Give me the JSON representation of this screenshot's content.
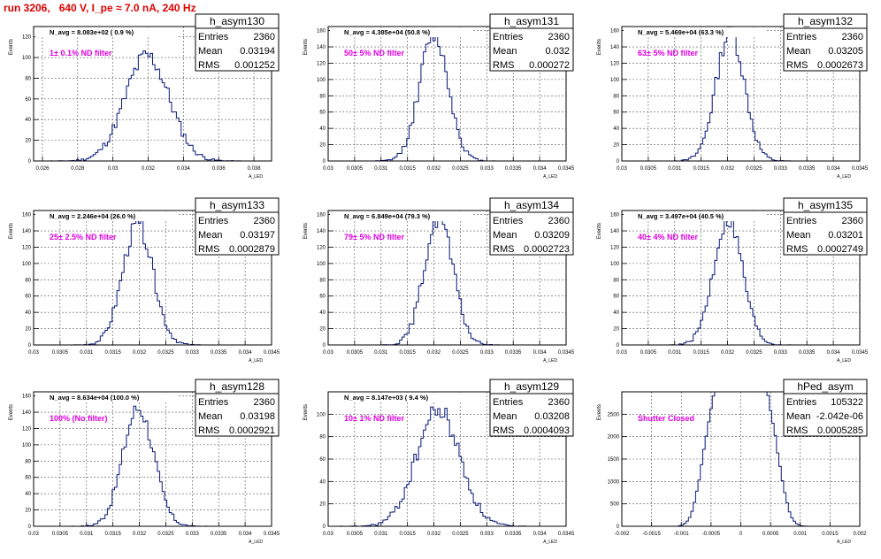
{
  "header": {
    "title": "run 3206,   640 V, I_pe ≈ 7.0 nA, 240 Hz"
  },
  "colors": {
    "histogram": "#0a1a7a",
    "title": "#e00000",
    "filter_label": "#e000e0",
    "grid": "#555555"
  },
  "chart_data": [
    {
      "type": "bar",
      "name": "h_asym130",
      "ylabel": "Events",
      "xlabel": "A_LED",
      "xlim": [
        0.0255,
        0.039
      ],
      "ylim": [
        0,
        130
      ],
      "xticks": [
        "0.026",
        "0.028",
        "0.03",
        "0.032",
        "0.034",
        "0.036",
        "0.038"
      ],
      "yticks": [
        "0",
        "20",
        "40",
        "60",
        "80",
        "100",
        "120"
      ],
      "stats": {
        "label": "h_asym130",
        "entries": "2360",
        "mean": "0.03194",
        "rms": "0.001252"
      },
      "navg": "N_avg = 8.083e+02 ( 0.9 %)",
      "filter": "1± 0.1% ND filter",
      "hist": {
        "mean": 0.03194,
        "sigma": 0.001252,
        "n": 2360,
        "bins": 100,
        "seed": 11
      }
    },
    {
      "type": "bar",
      "name": "h_asym131",
      "ylabel": "Events",
      "xlabel": "A_LED",
      "xlim": [
        0.03,
        0.0345
      ],
      "ylim": [
        0,
        165
      ],
      "xticks": [
        "0.03",
        "0.0305",
        "0.031",
        "0.0315",
        "0.032",
        "0.0325",
        "0.033",
        "0.0335",
        "0.034",
        "0.0345"
      ],
      "yticks": [
        "0",
        "20",
        "40",
        "60",
        "80",
        "100",
        "120",
        "140",
        "160"
      ],
      "stats": {
        "label": "h_asym131",
        "entries": "2360",
        "mean": "0.032",
        "rms": "0.000272"
      },
      "navg": "N_avg = 4.385e+04 (50.8 %)",
      "filter": "50± 5% ND filter",
      "hist": {
        "mean": 0.032,
        "sigma": 0.000272,
        "n": 2360,
        "bins": 100,
        "seed": 12
      }
    },
    {
      "type": "bar",
      "name": "h_asym132",
      "ylabel": "Events",
      "xlabel": "A_LED",
      "xlim": [
        0.03,
        0.0345
      ],
      "ylim": [
        0,
        165
      ],
      "xticks": [
        "0.03",
        "0.0305",
        "0.031",
        "0.0315",
        "0.032",
        "0.0325",
        "0.033",
        "0.0335",
        "0.034",
        "0.0345"
      ],
      "yticks": [
        "0",
        "20",
        "40",
        "60",
        "80",
        "100",
        "120",
        "140",
        "160"
      ],
      "stats": {
        "label": "h_asym132",
        "entries": "2360",
        "mean": "0.03205",
        "rms": "0.0002673"
      },
      "navg": "N_avg = 5.469e+04 (63.3 %)",
      "filter": "63± 5% ND filter",
      "hist": {
        "mean": 0.03205,
        "sigma": 0.0002673,
        "n": 2360,
        "bins": 100,
        "seed": 13
      }
    },
    {
      "type": "bar",
      "name": "h_asym133",
      "ylabel": "Events",
      "xlabel": "A_LED",
      "xlim": [
        0.03,
        0.0345
      ],
      "ylim": [
        0,
        165
      ],
      "xticks": [
        "0.03",
        "0.0305",
        "0.031",
        "0.0315",
        "0.032",
        "0.0325",
        "0.033",
        "0.0335",
        "0.034",
        "0.0345"
      ],
      "yticks": [
        "0",
        "20",
        "40",
        "60",
        "80",
        "100",
        "120",
        "140",
        "160"
      ],
      "stats": {
        "label": "h_asym133",
        "entries": "2360",
        "mean": "0.03197",
        "rms": "0.0002879"
      },
      "navg": "N_avg = 2.246e+04 (26.0 %)",
      "filter": "25± 2.5% ND filter",
      "hist": {
        "mean": 0.03197,
        "sigma": 0.0002879,
        "n": 2360,
        "bins": 100,
        "seed": 14
      }
    },
    {
      "type": "bar",
      "name": "h_asym134",
      "ylabel": "Events",
      "xlabel": "A_LED",
      "xlim": [
        0.03,
        0.0345
      ],
      "ylim": [
        0,
        165
      ],
      "xticks": [
        "0.03",
        "0.0305",
        "0.031",
        "0.0315",
        "0.032",
        "0.0325",
        "0.033",
        "0.0335",
        "0.034",
        "0.0345"
      ],
      "yticks": [
        "0",
        "20",
        "40",
        "60",
        "80",
        "100",
        "120",
        "140",
        "160"
      ],
      "stats": {
        "label": "h_asym134",
        "entries": "2360",
        "mean": "0.03209",
        "rms": "0.0002723"
      },
      "navg": "N_avg = 6.849e+04 (79.3 %)",
      "filter": "79± 5% ND filter",
      "hist": {
        "mean": 0.03209,
        "sigma": 0.0002723,
        "n": 2360,
        "bins": 100,
        "seed": 15
      }
    },
    {
      "type": "bar",
      "name": "h_asym135",
      "ylabel": "Events",
      "xlabel": "A_LED",
      "xlim": [
        0.03,
        0.0345
      ],
      "ylim": [
        0,
        165
      ],
      "xticks": [
        "0.03",
        "0.0305",
        "0.031",
        "0.0315",
        "0.032",
        "0.0325",
        "0.033",
        "0.0335",
        "0.034",
        "0.0345"
      ],
      "yticks": [
        "0",
        "20",
        "40",
        "60",
        "80",
        "100",
        "120",
        "140",
        "160"
      ],
      "stats": {
        "label": "h_asym135",
        "entries": "2360",
        "mean": "0.03201",
        "rms": "0.0002749"
      },
      "navg": "N_avg = 3.497e+04 (40.5 %)",
      "filter": "40± 4% ND filter",
      "hist": {
        "mean": 0.03201,
        "sigma": 0.0002749,
        "n": 2360,
        "bins": 100,
        "seed": 16
      }
    },
    {
      "type": "bar",
      "name": "h_asym128",
      "ylabel": "Events",
      "xlabel": "A_LED",
      "xlim": [
        0.03,
        0.0345
      ],
      "ylim": [
        0,
        165
      ],
      "xticks": [
        "0.03",
        "0.0305",
        "0.031",
        "0.0315",
        "0.032",
        "0.0325",
        "0.033",
        "0.0335",
        "0.034",
        "0.0345"
      ],
      "yticks": [
        "0",
        "20",
        "40",
        "60",
        "80",
        "100",
        "120",
        "140",
        "160"
      ],
      "stats": {
        "label": "h_asym128",
        "entries": "2360",
        "mean": "0.03198",
        "rms": "0.0002921"
      },
      "navg": "N_avg = 8.634e+04 (100.0 %)",
      "filter": "100% (No filter)",
      "hist": {
        "mean": 0.03198,
        "sigma": 0.0002921,
        "n": 2360,
        "bins": 100,
        "seed": 17
      }
    },
    {
      "type": "bar",
      "name": "h_asym129",
      "ylabel": "Events",
      "xlabel": "A_LED",
      "xlim": [
        0.03,
        0.0345
      ],
      "ylim": [
        0,
        120
      ],
      "xticks": [
        "0.03",
        "0.0305",
        "0.031",
        "0.0315",
        "0.032",
        "0.0325",
        "0.033",
        "0.0335",
        "0.034",
        "0.0345"
      ],
      "yticks": [
        "0",
        "20",
        "40",
        "60",
        "80",
        "100"
      ],
      "stats": {
        "label": "h_asym129",
        "entries": "2360",
        "mean": "0.03208",
        "rms": "0.0004093"
      },
      "navg": "N_avg = 8.147e+03 ( 9.4 %)",
      "filter": "10± 1% ND filter",
      "hist": {
        "mean": 0.03208,
        "sigma": 0.0004093,
        "n": 2360,
        "bins": 100,
        "seed": 18
      }
    },
    {
      "type": "bar",
      "name": "hPed_asym",
      "ylabel": "Events",
      "xlabel": "A_LED",
      "xlim": [
        -0.002,
        0.002
      ],
      "ylim": [
        0,
        3000
      ],
      "xticks": [
        "-0.002",
        "-0.0015",
        "-0.001",
        "-0.0005",
        "0",
        "0.0005",
        "0.001",
        "0.0015",
        "0.002"
      ],
      "yticks": [
        "0",
        "500",
        "1000",
        "1500",
        "2000",
        "2500"
      ],
      "stats": {
        "label": "hPed_asym",
        "entries": "105322",
        "mean": "-2.042e-06",
        "rms": "0.0005285"
      },
      "navg": "",
      "filter": "Shutter Closed",
      "hist": {
        "mean": -2.042e-06,
        "sigma": 0.0005285,
        "n": 105322,
        "bins": 100,
        "seed": 19,
        "flat": true
      }
    }
  ]
}
